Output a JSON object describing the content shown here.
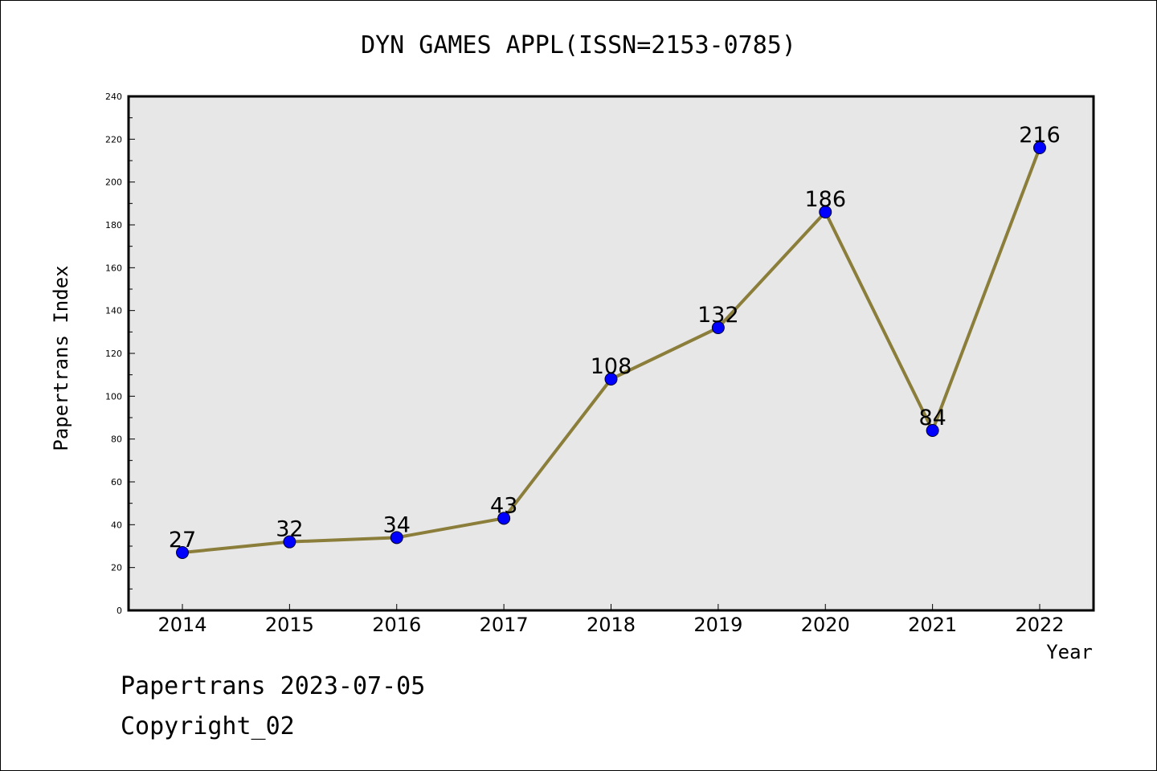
{
  "chart_data": {
    "type": "line",
    "title": "DYN GAMES APPL(ISSN=2153-0785)",
    "xlabel": "Year",
    "ylabel": "Papertrans Index",
    "categories": [
      "2014",
      "2015",
      "2016",
      "2017",
      "2018",
      "2019",
      "2020",
      "2021",
      "2022"
    ],
    "values": [
      27,
      32,
      34,
      43,
      108,
      132,
      186,
      84,
      216
    ],
    "data_labels": [
      "27",
      "32",
      "34",
      "43",
      "108",
      "132",
      "186",
      "84",
      "216"
    ],
    "ylim": [
      0,
      240
    ],
    "yticks": [
      0,
      20,
      40,
      60,
      80,
      100,
      120,
      140,
      160,
      180,
      200,
      220,
      240
    ],
    "ytick_labels": [
      "0",
      "20",
      "40",
      "60",
      "80",
      "100",
      "120",
      "140",
      "160",
      "180",
      "200",
      "220",
      "240"
    ],
    "grid": false,
    "legend": "none",
    "colors": {
      "line": "#8B7D3A",
      "marker": "#0000FF",
      "plot_background": "#E7E7E7"
    }
  },
  "footer": {
    "line1": "Papertrans 2023-07-05",
    "line2": "Copyright_02"
  }
}
